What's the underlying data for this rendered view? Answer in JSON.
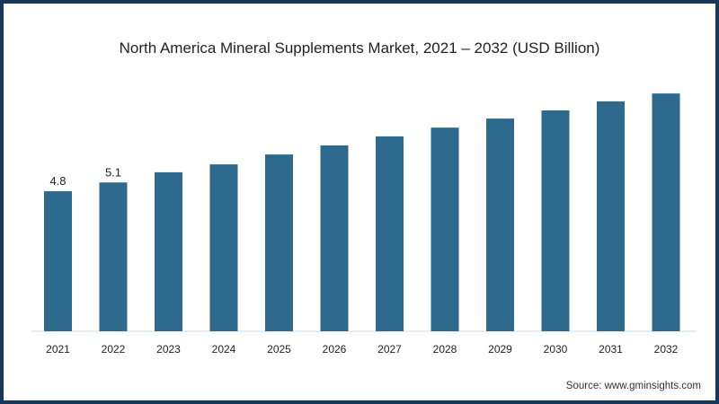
{
  "chart_data": {
    "type": "bar",
    "title": "North America Mineral Supplements Market, 2021 – 2032 (USD Billion)",
    "categories": [
      "2021",
      "2022",
      "2023",
      "2024",
      "2025",
      "2026",
      "2027",
      "2028",
      "2029",
      "2030",
      "2031",
      "2032"
    ],
    "values": [
      4.8,
      5.1,
      5.45,
      5.72,
      6.06,
      6.37,
      6.68,
      6.98,
      7.29,
      7.57,
      7.88,
      8.15
    ],
    "data_labels": [
      "4.8",
      "5.1",
      null,
      null,
      null,
      null,
      null,
      null,
      null,
      null,
      null,
      null
    ],
    "xlabel": "",
    "ylabel": "",
    "ylim": [
      0,
      8.5
    ],
    "grid": false,
    "bar_color": "#2e6a8e",
    "source": "Source: www.gminsights.com"
  }
}
